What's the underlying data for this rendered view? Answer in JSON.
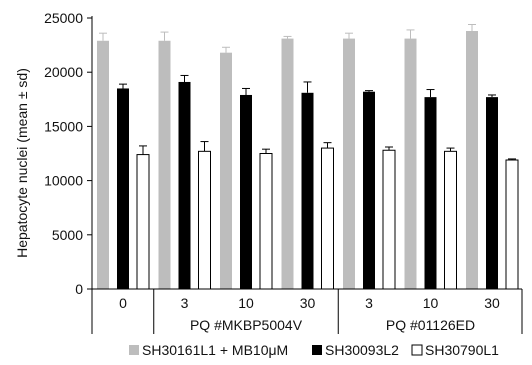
{
  "chart_data": {
    "type": "bar",
    "ylabel": "Hepatocyte nuclei (mean ± sd)",
    "ylim": [
      0,
      25000
    ],
    "yticks": [
      0,
      5000,
      10000,
      15000,
      20000,
      25000
    ],
    "categories": [
      "0",
      "3",
      "10",
      "30",
      "3",
      "10",
      "30"
    ],
    "groups": [
      {
        "label": "",
        "categories": [
          0
        ]
      },
      {
        "label": "PQ #MKBP5004V",
        "categories": [
          1,
          2,
          3
        ]
      },
      {
        "label": "PQ #01126ED",
        "categories": [
          4,
          5,
          6
        ]
      }
    ],
    "series": [
      {
        "name": "SH30161L1 + MB10μM",
        "color": "#bdbdbd",
        "values": [
          22900,
          22900,
          21800,
          23100,
          23100,
          23100,
          23800
        ],
        "errors": [
          700,
          800,
          500,
          200,
          500,
          800,
          600
        ]
      },
      {
        "name": "SH30093L2",
        "color": "#000000",
        "values": [
          18500,
          19100,
          17900,
          18100,
          18200,
          17700,
          17700
        ],
        "errors": [
          400,
          600,
          600,
          1000,
          100,
          700,
          200
        ]
      },
      {
        "name": "SH30790L1",
        "color": "#ffffff",
        "values": [
          12400,
          12700,
          12500,
          13000,
          12800,
          12700,
          11900
        ],
        "errors": [
          800,
          900,
          400,
          500,
          300,
          300,
          100
        ]
      }
    ],
    "legend": "bottom",
    "grid": false
  }
}
